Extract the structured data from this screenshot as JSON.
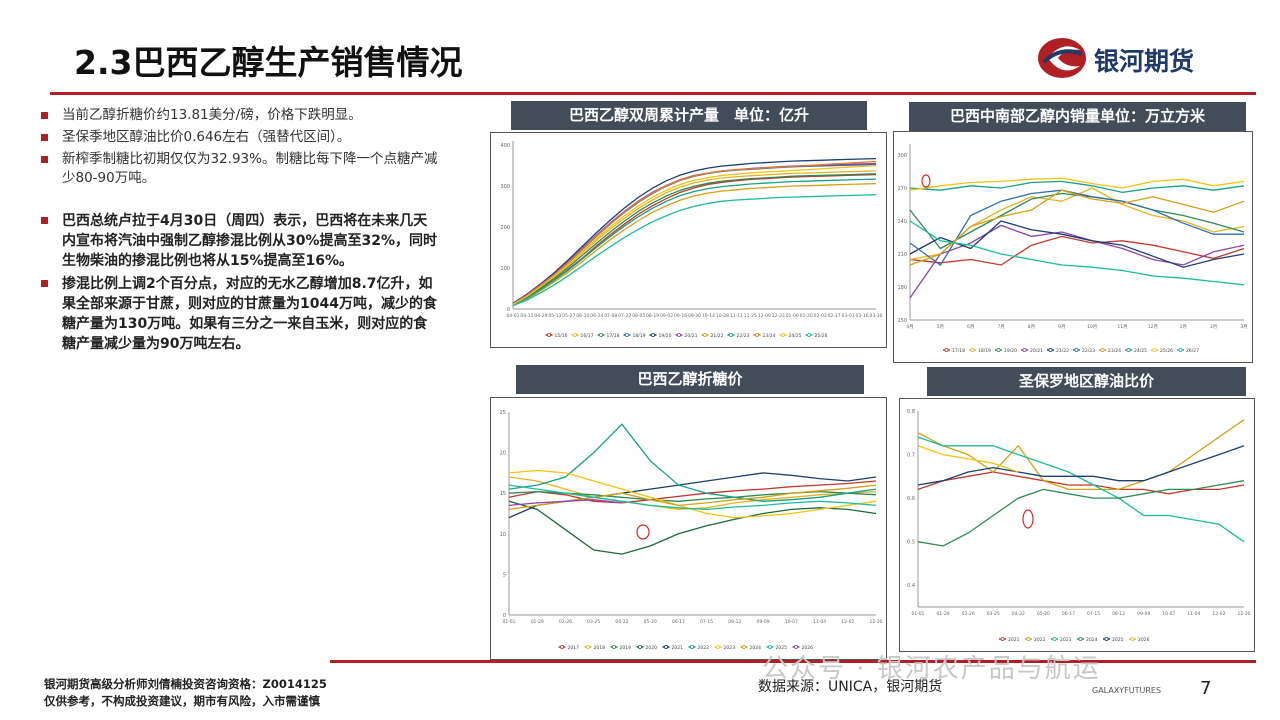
{
  "header": {
    "title": "2.3巴西乙醇生产销售情况",
    "logo_text": "银河期货"
  },
  "bullets": [
    "当前乙醇折糖价约13.81美分/磅，价格下跌明显。",
    "圣保季地区醇油比价0.646左右（强替代区间）。",
    "新榨季制糖比初期仅仅为32.93%。制糖比每下降一个点糖产减少80-90万吨。"
  ],
  "bold_bullets": [
    "巴西总统卢拉于4月30日（周四）表示，巴西将在未来几天内宣布将汽油中强制乙醇掺混比例从30%提高至32%，同时生物柴油的掺混比例也将从15%提高至16%。",
    "掺混比例上调2个百分点，对应的无水乙醇增加8.7亿升，如果全部来源于甘蔗，则对应的甘蔗量为1044万吨，减少的食糖产量为130万吨。如果有三分之一来自玉米，则对应的食糖产量减少量为90万吨左右。"
  ],
  "footer": {
    "analyst": "银河期货高级分析师刘倩楠投资咨询资格：Z0014125",
    "disclaimer": "仅供参考，不构成投资建议，期市有风险，入市需谨慎",
    "source": "数据来源：UNICA，银河期货",
    "watermark": "公众号 · 银河农产品与航运",
    "galaxy": "GALAXYFUTURES",
    "page": "7"
  },
  "colors": {
    "accent": "#b01f24",
    "title_bar": "#434d59",
    "logo_blue": "#1f3a68"
  },
  "chart_data": [
    {
      "type": "line",
      "title": "巴西乙醇双周累计产量　单位：亿升",
      "ylim": [
        0,
        410
      ],
      "yticks": [
        "0",
        "100",
        "200",
        "300",
        "400"
      ],
      "categories": [
        "04-01",
        "04-15",
        "04-29",
        "05-13",
        "05-27",
        "06-10",
        "06-24",
        "07-08",
        "07-22",
        "08-05",
        "08-19",
        "09-02",
        "09-16",
        "09-30",
        "10-14",
        "10-28",
        "11-11",
        "11-25",
        "12-09",
        "12-23",
        "01-06",
        "01-20",
        "02-03",
        "02-17",
        "03-01",
        "03-16",
        "03-30"
      ],
      "series": [
        {
          "name": "15/16",
          "color": "#c0392b",
          "values": [
            10,
            28,
            50,
            72,
            98,
            125,
            155,
            182,
            208,
            232,
            252,
            270,
            285,
            296,
            304,
            309,
            313,
            316,
            318,
            320,
            322,
            323,
            324,
            325,
            326,
            327,
            328
          ]
        },
        {
          "name": "16/17",
          "color": "#e6b422",
          "values": [
            12,
            32,
            55,
            80,
            108,
            138,
            168,
            196,
            222,
            246,
            266,
            284,
            298,
            308,
            315,
            320,
            323,
            325,
            327,
            329,
            331,
            332,
            333,
            334,
            335,
            336,
            337
          ]
        },
        {
          "name": "17/18",
          "color": "#2e8b57",
          "values": [
            11,
            30,
            52,
            76,
            103,
            132,
            161,
            189,
            215,
            239,
            259,
            276,
            290,
            300,
            307,
            312,
            315,
            318,
            320,
            322,
            324,
            325,
            326,
            327,
            328,
            329,
            330
          ]
        },
        {
          "name": "18/19",
          "color": "#2f6fb0",
          "values": [
            13,
            34,
            58,
            84,
            114,
            146,
            178,
            208,
            236,
            261,
            282,
            300,
            314,
            324,
            331,
            336,
            339,
            341,
            343,
            345,
            347,
            348,
            349,
            350,
            351,
            352,
            353
          ]
        },
        {
          "name": "19/20",
          "color": "#1b3f73",
          "values": [
            14,
            36,
            62,
            90,
            121,
            154,
            187,
            218,
            247,
            273,
            295,
            313,
            327,
            337,
            344,
            349,
            352,
            355,
            357,
            359,
            361,
            362,
            363,
            364,
            365,
            366,
            367
          ]
        },
        {
          "name": "20/21",
          "color": "#8e44ad",
          "values": [
            13,
            35,
            60,
            87,
            117,
            149,
            181,
            211,
            239,
            264,
            285,
            302,
            316,
            326,
            332,
            337,
            340,
            343,
            345,
            347,
            349,
            350,
            351,
            352,
            353,
            354,
            355
          ]
        },
        {
          "name": "21/22",
          "color": "#d4a017",
          "values": [
            9,
            25,
            45,
            67,
            91,
            117,
            144,
            170,
            194,
            216,
            236,
            252,
            266,
            276,
            283,
            288,
            291,
            294,
            296,
            298,
            300,
            301,
            302,
            303,
            304,
            305,
            306
          ]
        },
        {
          "name": "22/23",
          "color": "#16a085",
          "values": [
            10,
            27,
            48,
            71,
            96,
            123,
            151,
            178,
            203,
            226,
            246,
            263,
            277,
            287,
            294,
            299,
            302,
            305,
            307,
            309,
            311,
            312,
            313,
            314,
            315,
            316,
            317
          ]
        },
        {
          "name": "23/24",
          "color": "#e67e22",
          "values": [
            12,
            33,
            58,
            85,
            115,
            147,
            179,
            209,
            237,
            262,
            283,
            301,
            315,
            325,
            332,
            337,
            340,
            342,
            344,
            346,
            348,
            350,
            352,
            354,
            356,
            358,
            360
          ]
        },
        {
          "name": "24/25",
          "color": "#f1c40f",
          "values": [
            11,
            31,
            55,
            81,
            110,
            141,
            172,
            201,
            228,
            252,
            273,
            290,
            304,
            314,
            321,
            326,
            329,
            332,
            334,
            336,
            338,
            340,
            342,
            344,
            346,
            348,
            350
          ]
        },
        {
          "name": "25/26",
          "color": "#1abc9c",
          "values": [
            8,
            22,
            40,
            60,
            82,
            106,
            130,
            153,
            175,
            195,
            213,
            228,
            241,
            251,
            258,
            263,
            266,
            268,
            270,
            272,
            273,
            274,
            275,
            276,
            277,
            278,
            279
          ]
        }
      ]
    },
    {
      "type": "line",
      "title": "巴西中南部乙醇内销量单位：万立方米",
      "ylim": [
        150,
        310
      ],
      "yticks": [
        "150",
        "180",
        "210",
        "240",
        "270",
        "300"
      ],
      "categories": [
        "4月",
        "5月",
        "6月",
        "7月",
        "8月",
        "9月",
        "10月",
        "11月",
        "12月",
        "1月",
        "2月",
        "3月"
      ],
      "series": [
        {
          "name": "17/18",
          "color": "#c0392b",
          "values": [
            205,
            202,
            205,
            200,
            218,
            226,
            220,
            222,
            218,
            212,
            206,
            215
          ]
        },
        {
          "name": "18/19",
          "color": "#e6b422",
          "values": [
            205,
            210,
            235,
            250,
            262,
            258,
            270,
            255,
            245,
            240,
            230,
            235
          ]
        },
        {
          "name": "19/20",
          "color": "#2e8b57",
          "values": [
            250,
            215,
            230,
            245,
            260,
            265,
            262,
            258,
            250,
            245,
            238,
            230
          ]
        },
        {
          "name": "20/21",
          "color": "#8e44ad",
          "values": [
            170,
            210,
            220,
            236,
            226,
            230,
            222,
            215,
            205,
            200,
            212,
            218
          ]
        },
        {
          "name": "21/22",
          "color": "#1b3f73",
          "values": [
            210,
            225,
            215,
            240,
            232,
            228,
            222,
            218,
            208,
            198,
            205,
            210
          ]
        },
        {
          "name": "22/23",
          "color": "#2f6fb0",
          "values": [
            220,
            200,
            245,
            258,
            265,
            268,
            262,
            258,
            250,
            238,
            228,
            228
          ]
        },
        {
          "name": "23/24",
          "color": "#d4a017",
          "values": [
            200,
            210,
            235,
            244,
            250,
            268,
            260,
            256,
            262,
            255,
            248,
            258
          ]
        },
        {
          "name": "24/25",
          "color": "#16a085",
          "values": [
            270,
            268,
            272,
            270,
            275,
            276,
            272,
            266,
            270,
            272,
            268,
            272
          ]
        },
        {
          "name": "25/26",
          "color": "#f1c40f",
          "values": [
            268,
            272,
            275,
            276,
            278,
            279,
            274,
            270,
            276,
            278,
            272,
            276
          ]
        },
        {
          "name": "26/27",
          "color": "#1abc9c",
          "values": [
            240,
            222,
            218,
            210,
            205,
            200,
            198,
            195,
            190,
            188,
            185,
            182
          ]
        }
      ]
    },
    {
      "type": "line",
      "title": "巴西乙醇折糖价",
      "ylim": [
        0,
        25
      ],
      "yticks": [
        "0",
        "5",
        "10",
        "15",
        "20",
        "25"
      ],
      "categories": [
        "01-01",
        "01-29",
        "02-26",
        "03-25",
        "04-22",
        "05-20",
        "06-17",
        "07-15",
        "08-12",
        "09-09",
        "10-07",
        "11-04",
        "12-02",
        "12-30"
      ],
      "series": [
        {
          "name": "2017",
          "color": "#c0392b",
          "values": [
            14.5,
            15.2,
            14.8,
            14.0,
            13.8,
            14.2,
            14.6,
            15.0,
            15.3,
            15.5,
            15.8,
            16.0,
            16.2,
            16.5
          ]
        },
        {
          "name": "2018",
          "color": "#e6b422",
          "values": [
            17.0,
            16.5,
            15.5,
            14.5,
            14.0,
            13.5,
            13.0,
            13.2,
            13.8,
            14.2,
            14.5,
            14.8,
            15.0,
            15.2
          ]
        },
        {
          "name": "2019",
          "color": "#2e8b57",
          "values": [
            15.0,
            15.2,
            15.0,
            14.8,
            14.5,
            14.2,
            14.0,
            14.3,
            14.5,
            14.8,
            15.0,
            15.2,
            15.0,
            14.8
          ]
        },
        {
          "name": "2020",
          "color": "#1a6b3a",
          "values": [
            14.0,
            13.0,
            10.5,
            8.0,
            7.5,
            8.5,
            10.0,
            11.0,
            11.8,
            12.5,
            13.0,
            13.2,
            13.0,
            12.5
          ]
        },
        {
          "name": "2021",
          "color": "#1b3f73",
          "values": [
            12.0,
            13.5,
            14.0,
            14.5,
            15.0,
            15.5,
            16.0,
            16.5,
            17.0,
            17.5,
            17.2,
            16.8,
            16.5,
            17.0
          ]
        },
        {
          "name": "2022",
          "color": "#16a085",
          "values": [
            15.5,
            16.0,
            17.0,
            20.0,
            23.5,
            19.0,
            16.0,
            15.0,
            14.5,
            14.0,
            14.2,
            14.5,
            15.0,
            15.5
          ]
        },
        {
          "name": "2023",
          "color": "#f1c40f",
          "values": [
            17.5,
            17.8,
            17.5,
            16.5,
            15.5,
            14.5,
            13.5,
            12.5,
            12.0,
            12.2,
            12.5,
            13.0,
            13.5,
            14.0
          ]
        },
        {
          "name": "2024",
          "color": "#d4a017",
          "values": [
            13.0,
            13.5,
            14.0,
            14.5,
            15.0,
            14.2,
            13.5,
            13.8,
            14.2,
            14.5,
            15.0,
            15.3,
            15.6,
            16.0
          ]
        },
        {
          "name": "2025",
          "color": "#1abc9c",
          "values": [
            16.0,
            15.5,
            15.0,
            14.5,
            14.0,
            13.5,
            13.2,
            13.0,
            13.3,
            13.5,
            13.8,
            14.0,
            13.8,
            13.5
          ]
        },
        {
          "name": "2026",
          "color": "#8e44ad",
          "values": [
            13.5,
            13.8,
            14.0,
            14.2,
            13.8,
            null,
            null,
            null,
            null,
            null,
            null,
            null,
            null,
            null
          ]
        }
      ]
    },
    {
      "type": "line",
      "title": "圣保罗地区醇油比价",
      "ylim": [
        0.35,
        0.8
      ],
      "yticks": [
        "0.4",
        "0.5",
        "0.6",
        "0.7",
        "0.8"
      ],
      "categories": [
        "01-01",
        "01-29",
        "02-26",
        "03-25",
        "04-22",
        "05-20",
        "06-17",
        "07-15",
        "08-12",
        "09-09",
        "10-07",
        "11-04",
        "12-02",
        "12-30"
      ],
      "series": [
        {
          "name": "2021",
          "color": "#c0392b",
          "values": [
            0.62,
            0.64,
            0.65,
            0.66,
            0.65,
            0.64,
            0.63,
            0.63,
            0.62,
            0.62,
            0.61,
            0.62,
            0.62,
            0.63
          ]
        },
        {
          "name": "2022",
          "color": "#d4a017",
          "values": [
            0.75,
            0.72,
            0.7,
            0.66,
            0.72,
            0.64,
            0.62,
            0.62,
            0.62,
            0.64,
            0.66,
            0.7,
            0.74,
            0.78
          ]
        },
        {
          "name": "2023",
          "color": "#1abc9c",
          "values": [
            0.74,
            0.72,
            0.72,
            0.72,
            0.7,
            0.68,
            0.66,
            0.63,
            0.6,
            0.56,
            0.56,
            0.55,
            0.54,
            0.5
          ]
        },
        {
          "name": "2024",
          "color": "#2e8b57",
          "values": [
            0.5,
            0.49,
            0.52,
            0.56,
            0.6,
            0.62,
            0.61,
            0.6,
            0.6,
            0.61,
            0.62,
            0.62,
            0.63,
            0.64
          ]
        },
        {
          "name": "2025",
          "color": "#1b3f73",
          "values": [
            0.63,
            0.64,
            0.66,
            0.67,
            0.66,
            0.65,
            0.65,
            0.65,
            0.64,
            0.64,
            0.66,
            0.68,
            0.7,
            0.72
          ]
        },
        {
          "name": "2026",
          "color": "#f1c40f",
          "values": [
            0.72,
            0.7,
            0.69,
            0.68,
            0.66,
            null,
            null,
            null,
            null,
            null,
            null,
            null,
            null,
            null
          ]
        }
      ]
    }
  ]
}
